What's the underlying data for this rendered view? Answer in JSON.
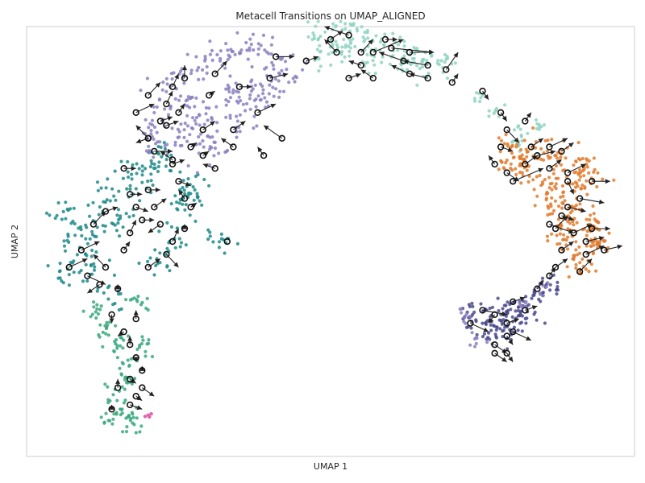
{
  "chart_data": {
    "type": "scatter",
    "title": "Metacell Transitions on UMAP_ALIGNED",
    "xlabel": "UMAP 1",
    "ylabel": "UMAP 2",
    "xlim": [
      0,
      100
    ],
    "ylim": [
      0,
      100
    ],
    "xticks": false,
    "yticks": false,
    "grid": false,
    "legend": "none",
    "cluster_colors": {
      "lavender": "#8c7fbf",
      "mint": "#8fd3c2",
      "teal": "#1f8a8a",
      "green": "#3aa87f",
      "orange": "#e07b2e",
      "navy": "#4b4a8c",
      "pink": "#e066b0"
    },
    "clusters": [
      {
        "color": "teal",
        "spread": 2.6,
        "n": 14,
        "centers": [
          [
            6.5,
            57
          ],
          [
            9.5,
            52
          ],
          [
            8,
            48
          ],
          [
            11,
            44
          ],
          [
            13,
            60
          ],
          [
            16,
            55
          ],
          [
            18,
            63
          ],
          [
            20,
            67
          ],
          [
            22,
            70
          ],
          [
            25,
            58
          ],
          [
            27,
            63
          ],
          [
            25,
            50
          ],
          [
            22,
            45
          ],
          [
            14,
            38
          ],
          [
            17,
            66
          ],
          [
            28,
            61
          ],
          [
            11,
            54
          ],
          [
            7,
            42
          ]
        ]
      },
      {
        "color": "green",
        "spread": 1.8,
        "n": 12,
        "centers": [
          [
            13,
            30
          ],
          [
            15,
            27
          ],
          [
            16,
            22
          ],
          [
            16.5,
            18
          ],
          [
            15,
            14
          ],
          [
            16,
            10
          ],
          [
            17,
            8
          ],
          [
            14,
            9
          ],
          [
            11,
            34
          ],
          [
            18,
            36
          ],
          [
            19,
            26
          ]
        ]
      },
      {
        "color": "lavender",
        "spread": 2.8,
        "n": 16,
        "centers": [
          [
            20,
            74
          ],
          [
            22,
            80
          ],
          [
            25,
            86
          ],
          [
            28,
            90
          ],
          [
            32,
            93
          ],
          [
            35,
            95
          ],
          [
            39,
            94
          ],
          [
            41,
            90
          ],
          [
            38,
            86
          ],
          [
            33,
            84
          ],
          [
            30,
            79
          ],
          [
            34,
            78
          ],
          [
            28,
            76
          ],
          [
            24,
            72
          ],
          [
            31,
            71
          ],
          [
            37,
            82
          ],
          [
            42,
            88
          ],
          [
            26,
            82
          ]
        ]
      },
      {
        "color": "mint",
        "spread": 2.2,
        "n": 14,
        "centers": [
          [
            48,
            98
          ],
          [
            51,
            99
          ],
          [
            54,
            98
          ],
          [
            57,
            97
          ],
          [
            60,
            95
          ],
          [
            63,
            93
          ],
          [
            66,
            91
          ],
          [
            69,
            91
          ],
          [
            52,
            94
          ],
          [
            57,
            92
          ],
          [
            62,
            90
          ],
          [
            48,
            93
          ]
        ]
      },
      {
        "color": "mint",
        "spread": 1.2,
        "n": 8,
        "centers": [
          [
            74,
            83
          ],
          [
            77,
            80
          ],
          [
            81,
            76
          ],
          [
            84,
            77
          ],
          [
            81,
            73
          ]
        ]
      },
      {
        "color": "orange",
        "spread": 2.3,
        "n": 16,
        "centers": [
          [
            79,
            72
          ],
          [
            82,
            70
          ],
          [
            85,
            71
          ],
          [
            88,
            70
          ],
          [
            91,
            68
          ],
          [
            80,
            68
          ],
          [
            83,
            66
          ],
          [
            86,
            64
          ],
          [
            88,
            61
          ],
          [
            91,
            63
          ],
          [
            93,
            65
          ],
          [
            86,
            59
          ],
          [
            90,
            57
          ],
          [
            92,
            55
          ],
          [
            93,
            52
          ],
          [
            92,
            48
          ],
          [
            91,
            44
          ],
          [
            88,
            50
          ],
          [
            89,
            54
          ],
          [
            94,
            50
          ]
        ]
      },
      {
        "color": "navy",
        "spread": 2.0,
        "n": 14,
        "centers": [
          [
            73,
            34
          ],
          [
            76,
            33
          ],
          [
            79,
            34
          ],
          [
            81,
            35
          ],
          [
            78,
            31
          ],
          [
            80,
            30
          ],
          [
            77,
            28
          ],
          [
            82,
            32
          ],
          [
            75,
            30
          ],
          [
            84,
            38
          ],
          [
            86,
            40
          ]
        ]
      },
      {
        "color": "lavender",
        "spread": 1.3,
        "n": 8,
        "centers": [
          [
            82,
            36
          ],
          [
            85,
            39
          ],
          [
            74,
            27
          ],
          [
            72,
            33
          ]
        ]
      },
      {
        "color": "teal",
        "spread": 1.2,
        "n": 5,
        "centers": [
          [
            30,
            51
          ],
          [
            32,
            50
          ],
          [
            33,
            49
          ]
        ]
      }
    ],
    "pink_points": [
      [
        19.5,
        9.3
      ],
      [
        20,
        9.6
      ],
      [
        20.5,
        9.9
      ],
      [
        20.2,
        9.2
      ]
    ],
    "metacells": [
      [
        41,
        93,
        44,
        93
      ],
      [
        46,
        92,
        48,
        93
      ],
      [
        50,
        97,
        52,
        99
      ],
      [
        53,
        98,
        49,
        100
      ],
      [
        51,
        94,
        49,
        97
      ],
      [
        55,
        94,
        57,
        97
      ],
      [
        55,
        91,
        53,
        92
      ],
      [
        53,
        88,
        55,
        89
      ],
      [
        57,
        88,
        55,
        90
      ],
      [
        57,
        94,
        62,
        97
      ],
      [
        59,
        97,
        61,
        97
      ],
      [
        60,
        95,
        67,
        94
      ],
      [
        63,
        94,
        67,
        94
      ],
      [
        62,
        92,
        58,
        94
      ],
      [
        63,
        89,
        60,
        91
      ],
      [
        66,
        88,
        63,
        89
      ],
      [
        66,
        91,
        62,
        92
      ],
      [
        69,
        90,
        71,
        94
      ],
      [
        70,
        87,
        71,
        89
      ],
      [
        31,
        89,
        33,
        92
      ],
      [
        26,
        88,
        26,
        91
      ],
      [
        24,
        86,
        25,
        89
      ],
      [
        20,
        84,
        22,
        87
      ],
      [
        18,
        80,
        21,
        82
      ],
      [
        23,
        82,
        24,
        85
      ],
      [
        25,
        80,
        26,
        82
      ],
      [
        22,
        78,
        24,
        79
      ],
      [
        20,
        74,
        18,
        77
      ],
      [
        23,
        77,
        25,
        78
      ],
      [
        29,
        76,
        31,
        78
      ],
      [
        34,
        72,
        32,
        74
      ],
      [
        39,
        70,
        38,
        72
      ],
      [
        42,
        74,
        39,
        77
      ],
      [
        34,
        76,
        36,
        78
      ],
      [
        40,
        88,
        43,
        89
      ],
      [
        38,
        80,
        41,
        82
      ],
      [
        35,
        86,
        37,
        86
      ],
      [
        30,
        84,
        31,
        85
      ],
      [
        27,
        72,
        28,
        73
      ],
      [
        24,
        68,
        26,
        69
      ],
      [
        31,
        67,
        29,
        68
      ],
      [
        29,
        70,
        30,
        71
      ],
      [
        21,
        71,
        24,
        71
      ],
      [
        20,
        74,
        18,
        73
      ],
      [
        13,
        57,
        15,
        58
      ],
      [
        11,
        54,
        13,
        57
      ],
      [
        9,
        48,
        12,
        50
      ],
      [
        7,
        44,
        10,
        46
      ],
      [
        10,
        42,
        13,
        40
      ],
      [
        12,
        40,
        10,
        38
      ],
      [
        13,
        44,
        11,
        47
      ],
      [
        16,
        48,
        17,
        50
      ],
      [
        17,
        52,
        18,
        55
      ],
      [
        18,
        58,
        20,
        57
      ],
      [
        17,
        61,
        19,
        61
      ],
      [
        16,
        67,
        18,
        67
      ],
      [
        19,
        55,
        21,
        55
      ],
      [
        20,
        62,
        22,
        62
      ],
      [
        21,
        58,
        23,
        60
      ],
      [
        22,
        54,
        20,
        52
      ],
      [
        24,
        50,
        25,
        53
      ],
      [
        26,
        53,
        26,
        54
      ],
      [
        26,
        60,
        25,
        62
      ],
      [
        27,
        58,
        28,
        59
      ],
      [
        25,
        64,
        27,
        63
      ],
      [
        24,
        69,
        22,
        71
      ],
      [
        23,
        47,
        25,
        44
      ],
      [
        20,
        44,
        22,
        46
      ],
      [
        15,
        39,
        15,
        40
      ],
      [
        14,
        33,
        14,
        31
      ],
      [
        18,
        32,
        18,
        34
      ],
      [
        16,
        29,
        15,
        28
      ],
      [
        17,
        26,
        17,
        28
      ],
      [
        18,
        23,
        18,
        22
      ],
      [
        19,
        20,
        19,
        21
      ],
      [
        17,
        18,
        18,
        17
      ],
      [
        19,
        16,
        21,
        14
      ],
      [
        18,
        14,
        19,
        13
      ],
      [
        17,
        12,
        19,
        11
      ],
      [
        15,
        16,
        15,
        18
      ],
      [
        14,
        11,
        14,
        12
      ],
      [
        33,
        50,
        33,
        50
      ],
      [
        75,
        85,
        76,
        83
      ],
      [
        78,
        80,
        79,
        78
      ],
      [
        79,
        76,
        81,
        73
      ],
      [
        78,
        72,
        80,
        71
      ],
      [
        77,
        68,
        76,
        70
      ],
      [
        79,
        66,
        81,
        64
      ],
      [
        80,
        64,
        85,
        67
      ],
      [
        82,
        68,
        84,
        70
      ],
      [
        83,
        72,
        85,
        74
      ],
      [
        82,
        78,
        83,
        80
      ],
      [
        84,
        70,
        87,
        71
      ],
      [
        86,
        67,
        88,
        69
      ],
      [
        88,
        71,
        90,
        73
      ],
      [
        86,
        72,
        89,
        74
      ],
      [
        89,
        66,
        92,
        68
      ],
      [
        89,
        64,
        90,
        61
      ],
      [
        89,
        58,
        92,
        57
      ],
      [
        90,
        52,
        93,
        54
      ],
      [
        92,
        50,
        95,
        51
      ],
      [
        88,
        48,
        90,
        50
      ],
      [
        87,
        53,
        89,
        56
      ],
      [
        87,
        44,
        89,
        46
      ],
      [
        91,
        43,
        93,
        46
      ],
      [
        93,
        53,
        96,
        53
      ],
      [
        95,
        48,
        98,
        49
      ],
      [
        92,
        47,
        95,
        49
      ],
      [
        91,
        60,
        95,
        59
      ],
      [
        93,
        64,
        96,
        64
      ],
      [
        88,
        56,
        90,
        55
      ],
      [
        86,
        54,
        90,
        52
      ],
      [
        75,
        34,
        79,
        33
      ],
      [
        73,
        31,
        76,
        29
      ],
      [
        77,
        33,
        76,
        31
      ],
      [
        79,
        31,
        81,
        32
      ],
      [
        80,
        29,
        83,
        27
      ],
      [
        79,
        28,
        80,
        26
      ],
      [
        77,
        26,
        79,
        24
      ],
      [
        79,
        24,
        80,
        22
      ],
      [
        77,
        24,
        79,
        22
      ],
      [
        80,
        36,
        82,
        37
      ],
      [
        82,
        34,
        84,
        35
      ],
      [
        84,
        39,
        85,
        41
      ],
      [
        86,
        42,
        87,
        44
      ]
    ]
  }
}
